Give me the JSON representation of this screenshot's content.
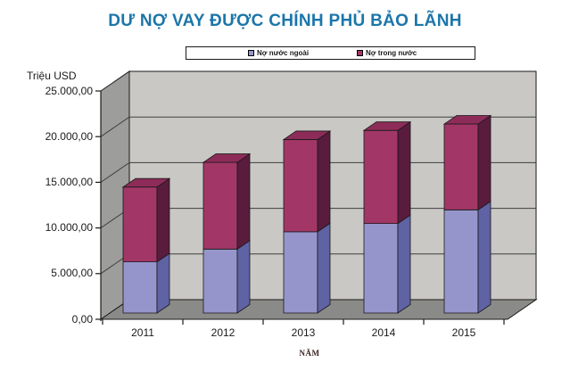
{
  "title": "DƯ NỢ VAY ĐƯỢC CHÍNH PHỦ BẢO LÃNH",
  "axis": {
    "y_title": "Triệu USD",
    "x_title": "NĂM"
  },
  "legend": {
    "items": [
      {
        "label": "Nợ nước ngoài",
        "color": "#9695CB"
      },
      {
        "label": "Nợ trong nước",
        "color": "#A23767"
      }
    ]
  },
  "chart_data": {
    "type": "bar",
    "variant": "3d-stacked-column",
    "stacked": true,
    "title": "DƯ NỢ VAY ĐƯỢC CHÍNH PHỦ BẢO LÃNH",
    "xlabel": "NĂM",
    "ylabel": "Triệu USD",
    "categories": [
      "2011",
      "2012",
      "2013",
      "2014",
      "2015"
    ],
    "series": [
      {
        "name": "Nợ nước ngoài",
        "color_front": "#9695CB",
        "color_side": "#5F62A3",
        "color_top": "#8183BC",
        "values": [
          5600,
          7000,
          8900,
          9800,
          11300
        ]
      },
      {
        "name": "Nợ trong nước",
        "color_front": "#A23767",
        "color_side": "#591C3D",
        "color_top": "#8D2C59",
        "values": [
          8200,
          9500,
          10100,
          10200,
          9400
        ]
      }
    ],
    "totals": [
      13800,
      16500,
      19000,
      20000,
      20700
    ],
    "ylim": [
      0,
      25000
    ],
    "ytick_step": 5000,
    "ytick_labels": [
      "0,00",
      "5.000,00",
      "10.000,00",
      "15.000,00",
      "20.000,00",
      "25.000,00"
    ],
    "grid": true,
    "legend_position": "top-center",
    "walls": {
      "back": "#C9C8C4",
      "left": "#9D9D9B",
      "floor": "#8A8A88"
    }
  },
  "colors": {
    "title": "#1B76A9",
    "text": "#1A1A1A",
    "x_axis_title": "#3A2222",
    "gridline": "#3F3F3F",
    "outline": "#1A1A1A",
    "background": "#FFFFFF"
  }
}
